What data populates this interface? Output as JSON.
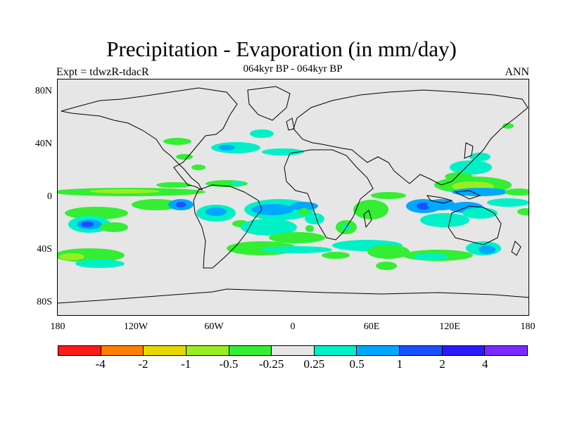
{
  "title": "Precipitation - Evaporation (in mm/day)",
  "subtitle": "064kyr BP - 064kyr BP",
  "left_label": "Expt = tdwzR-tdacR",
  "right_label": "ANN",
  "lat_labels": [
    "80N",
    "40N",
    "0",
    "40S",
    "80S"
  ],
  "lon_labels": [
    "180",
    "120W",
    "60W",
    "0",
    "60E",
    "120E",
    "180"
  ],
  "colorbar": {
    "colors": [
      "#ff1a1a",
      "#ff8000",
      "#e6d800",
      "#99ee22",
      "#33ee33",
      "#e6e6e6",
      "#00f0c8",
      "#00a8ff",
      "#1a50ff",
      "#2a1aff",
      "#7a2aff"
    ],
    "labels": [
      "-4",
      "-2",
      "-1",
      "-0.5",
      "-0.25",
      "0.25",
      "0.5",
      "1",
      "2",
      "4"
    ]
  },
  "map": {
    "background_color": "#e6e6e6",
    "coastline_color": "#000000",
    "lat_range": [
      -90,
      90
    ],
    "lon_range": [
      -180,
      180
    ]
  }
}
